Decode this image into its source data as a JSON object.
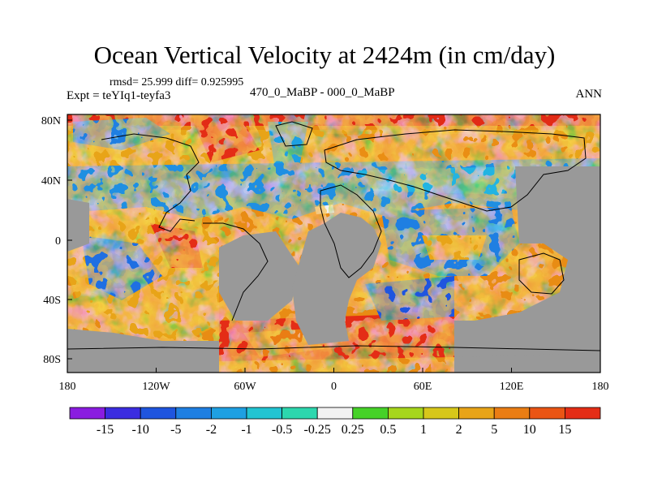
{
  "header": {
    "title": "Ocean Vertical Velocity at 2424m (in cm/day)",
    "rmsd_text": "rmsd= 25.999 diff= 0.925995",
    "experiment": "Expt = teYIq1-teyfa3",
    "period": "470_0_MaBP - 000_0_MaBP",
    "season": "ANN"
  },
  "map": {
    "longitude_ticks": [
      "180",
      "120W",
      "60W",
      "0",
      "60E",
      "120E",
      "180"
    ],
    "latitude_ticks": [
      "80N",
      "40N",
      "0",
      "40S",
      "80S"
    ],
    "land_color": "#999999"
  },
  "colorbar": {
    "colors": [
      "#8a1ce0",
      "#3b2ce0",
      "#1f55df",
      "#1f7fe2",
      "#1ea0e2",
      "#22c4d2",
      "#2cd7ae",
      "#f2f2f2",
      "#46d228",
      "#a6d61c",
      "#d7c71a",
      "#e8a418",
      "#ea7d14",
      "#ea5514",
      "#e42d16"
    ],
    "labels": [
      "-15",
      "-10",
      "-5",
      "-2",
      "-1",
      "-0.5",
      "-0.25",
      "0.25",
      "0.5",
      "1",
      "2",
      "5",
      "10",
      "15"
    ]
  }
}
